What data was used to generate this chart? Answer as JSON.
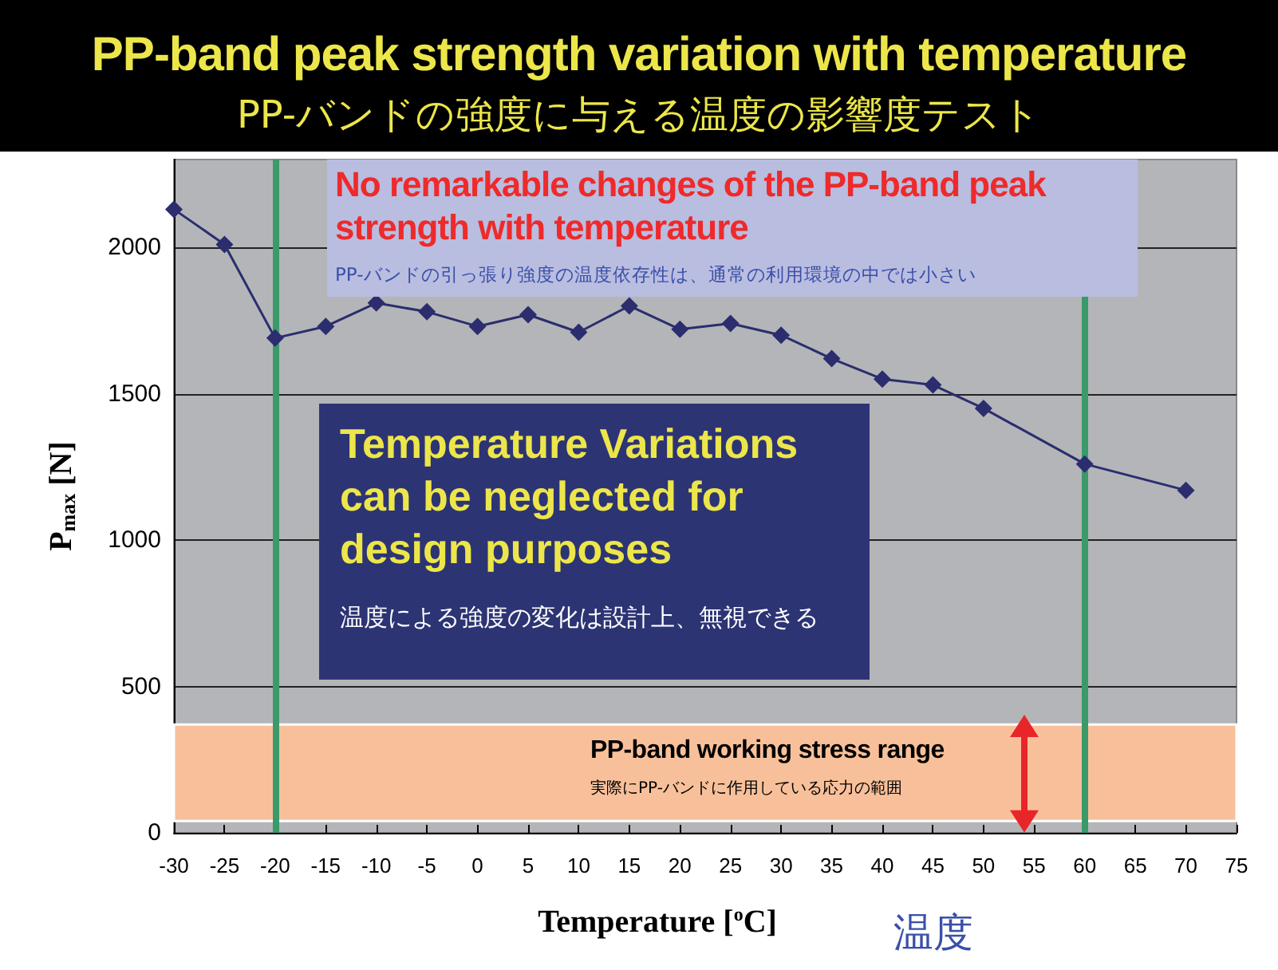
{
  "chart_data": {
    "type": "line",
    "title": "PP-band peak strength variation with temperature",
    "subtitle": "PP-バンドの強度に与える温度の影響度テスト",
    "xlabel": "Temperature [$^{o}$C]",
    "ylabel": "P$_{max}$ [N]",
    "x": [
      -30,
      -25,
      -20,
      -15,
      -10,
      -5,
      0,
      5,
      10,
      15,
      20,
      25,
      30,
      35,
      40,
      45,
      50,
      60,
      70
    ],
    "series": [
      {
        "color": "#2b2d6e",
        "values": [
          2130,
          2010,
          1690,
          1730,
          1810,
          1780,
          1730,
          1770,
          1710,
          1800,
          1720,
          1740,
          1700,
          1620,
          1550,
          1530,
          1450,
          1260,
          1170
        ]
      }
    ],
    "xlim": [
      -30,
      75
    ],
    "xticks": [
      -30,
      -25,
      -20,
      -15,
      -10,
      -5,
      0,
      5,
      10,
      15,
      20,
      25,
      30,
      35,
      40,
      45,
      50,
      55,
      60,
      65,
      70,
      75
    ],
    "ylim": [
      0,
      2300
    ],
    "yticks": [
      0,
      500,
      1000,
      1500,
      2000
    ],
    "grid": "y",
    "marker": "diamond",
    "line_style": "solid",
    "ref_lines": [
      {
        "axis": "x",
        "value": -20,
        "color": "#3a9a6a"
      },
      {
        "axis": "x",
        "value": 60,
        "color": "#3a9a6a"
      }
    ],
    "bands": [
      {
        "axis": "y",
        "from": 40,
        "to": 370,
        "label": "PP-band working stress range",
        "color": "#f8c09a"
      }
    ],
    "annotations": [
      "No remarkable changes of the PP-band peak strength with temperature",
      "PP-バンドの引っ張り強度の温度依存性は、通常の利用環境の中では小さい",
      "Temperature Variations can be neglected for design purposes",
      "温度による強度の変化は設計上、無視できる",
      "実際にPP-バンドに作用している応力の範囲",
      "温度"
    ]
  }
}
